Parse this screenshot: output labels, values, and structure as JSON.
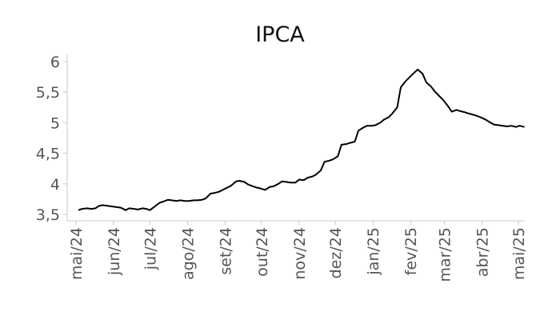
{
  "chart_data": {
    "type": "line",
    "title": "IPCA",
    "xlabel": "",
    "ylabel": "",
    "ylim": [
      3.5,
      6.0
    ],
    "y_ticks": [
      "3,5",
      "4",
      "4,5",
      "5",
      "5,5",
      "6"
    ],
    "x_ticks": [
      "mai/24",
      "jun/24",
      "jul/24",
      "ago/24",
      "set/24",
      "out/24",
      "nov/24",
      "dez/24",
      "jan/25",
      "fev/25",
      "mar/25",
      "abr/25",
      "mai/25"
    ],
    "grid": false,
    "series": [
      {
        "x": [
          "2024-05-03",
          "2024-05-06",
          "2024-05-10",
          "2024-05-14",
          "2024-05-17",
          "2024-05-20",
          "2024-05-23",
          "2024-05-27",
          "2024-05-31",
          "2024-06-03",
          "2024-06-07",
          "2024-06-11",
          "2024-06-14",
          "2024-06-18",
          "2024-06-21",
          "2024-06-25",
          "2024-06-28",
          "2024-07-01",
          "2024-07-05",
          "2024-07-09",
          "2024-07-12",
          "2024-07-16",
          "2024-07-19",
          "2024-07-23",
          "2024-07-26",
          "2024-07-30",
          "2024-08-02",
          "2024-08-06",
          "2024-08-09",
          "2024-08-13",
          "2024-08-16",
          "2024-08-20",
          "2024-08-23",
          "2024-08-27",
          "2024-08-30",
          "2024-09-03",
          "2024-09-06",
          "2024-09-10",
          "2024-09-13",
          "2024-09-17",
          "2024-09-20",
          "2024-09-24",
          "2024-09-27",
          "2024-10-01",
          "2024-10-04",
          "2024-10-08",
          "2024-10-11",
          "2024-10-15",
          "2024-10-18",
          "2024-10-22",
          "2024-10-25",
          "2024-10-29",
          "2024-11-01",
          "2024-11-05",
          "2024-11-08",
          "2024-11-12",
          "2024-11-15",
          "2024-11-19",
          "2024-11-22",
          "2024-11-26",
          "2024-11-29",
          "2024-12-03",
          "2024-12-06",
          "2024-12-10",
          "2024-12-13",
          "2024-12-17",
          "2024-12-20",
          "2024-12-24",
          "2024-12-27",
          "2024-12-31",
          "2025-01-03",
          "2025-01-07",
          "2025-01-10",
          "2025-01-14",
          "2025-01-17",
          "2025-01-21",
          "2025-01-24",
          "2025-01-28",
          "2025-01-31",
          "2025-02-03",
          "2025-02-07",
          "2025-02-11",
          "2025-02-14",
          "2025-02-18",
          "2025-02-21",
          "2025-02-25",
          "2025-02-28",
          "2025-03-04",
          "2025-03-07",
          "2025-03-11",
          "2025-03-14",
          "2025-03-18",
          "2025-03-21",
          "2025-03-25",
          "2025-03-28",
          "2025-04-01",
          "2025-04-04",
          "2025-04-08",
          "2025-04-11",
          "2025-04-15",
          "2025-04-18",
          "2025-04-22",
          "2025-04-25",
          "2025-04-29",
          "2025-05-02",
          "2025-05-06"
        ],
        "values": [
          3.57,
          3.59,
          3.6,
          3.59,
          3.6,
          3.64,
          3.65,
          3.64,
          3.63,
          3.62,
          3.61,
          3.57,
          3.6,
          3.59,
          3.58,
          3.6,
          3.59,
          3.57,
          3.63,
          3.69,
          3.71,
          3.74,
          3.73,
          3.72,
          3.73,
          3.72,
          3.72,
          3.73,
          3.73,
          3.74,
          3.76,
          3.84,
          3.85,
          3.87,
          3.9,
          3.94,
          3.97,
          4.04,
          4.05,
          4.03,
          3.99,
          3.96,
          3.94,
          3.92,
          3.9,
          3.95,
          3.96,
          4.0,
          4.04,
          4.03,
          4.02,
          4.02,
          4.07,
          4.06,
          4.1,
          4.12,
          4.15,
          4.22,
          4.36,
          4.38,
          4.4,
          4.45,
          4.64,
          4.65,
          4.67,
          4.69,
          4.87,
          4.92,
          4.95,
          4.95,
          4.96,
          5.0,
          5.05,
          5.09,
          5.15,
          5.25,
          5.58,
          5.68,
          5.74,
          5.8,
          5.87,
          5.8,
          5.66,
          5.59,
          5.51,
          5.43,
          5.37,
          5.27,
          5.18,
          5.21,
          5.19,
          5.17,
          5.15,
          5.13,
          5.11,
          5.08,
          5.05,
          5.0,
          4.97,
          4.96,
          4.95,
          4.94,
          4.95,
          4.93,
          4.95,
          4.93
        ]
      }
    ]
  }
}
